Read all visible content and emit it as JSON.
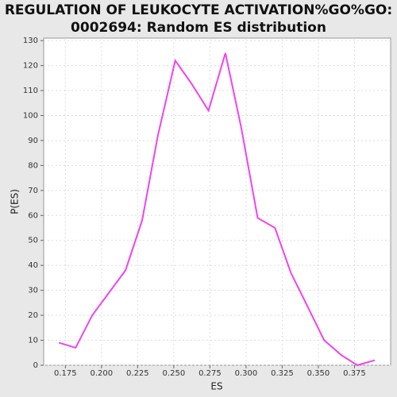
{
  "chart_data": {
    "type": "line",
    "title": [
      "REGULATION OF LEUKOCYTE ACTIVATION%GO%GO:",
      "0002694: Random ES distribution"
    ],
    "x_label": "ES",
    "y_label": "P(ES)",
    "x": [
      0.1706,
      0.1821,
      0.1936,
      0.2166,
      0.2281,
      0.239,
      0.251,
      0.262,
      0.274,
      0.2857,
      0.2967,
      0.308,
      0.32,
      0.331,
      0.343,
      0.354,
      0.366,
      0.377,
      0.389
    ],
    "series": [
      {
        "name": "P(ES)",
        "color": "#ee44ee",
        "values": [
          9,
          7,
          20,
          38,
          58,
          92,
          122,
          113,
          102,
          125,
          95,
          59,
          55,
          37,
          23,
          10,
          4,
          0,
          2
        ]
      }
    ],
    "xlim": [
      0.16,
      0.4
    ],
    "xticks": [
      0.175,
      {
        "value": 0.2,
        "label": "0.200"
      },
      0.225,
      {
        "value": 0.25,
        "label": "0.250"
      },
      0.275,
      {
        "value": 0.3,
        "label": "0.300"
      },
      0.325,
      {
        "value": 0.35,
        "label": "0.350"
      },
      0.375
    ],
    "ylim": [
      0,
      131
    ],
    "yticks": [
      0,
      10,
      20,
      30,
      40,
      50,
      60,
      70,
      80,
      90,
      100,
      110,
      120,
      130
    ],
    "grid": true
  }
}
